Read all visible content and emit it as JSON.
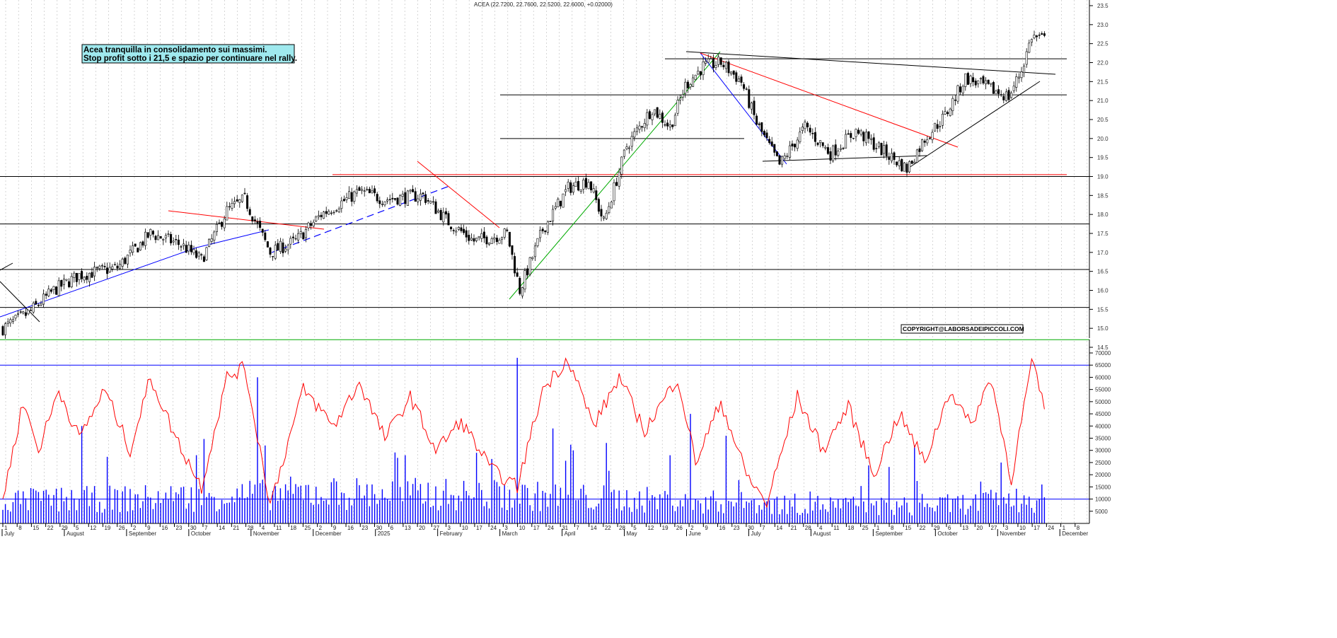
{
  "chart_data": {
    "type": "candlestick",
    "title": "ACEA (22.7200, 22.7600, 22.5200, 22.6000, +0.02000)",
    "annotation_lines": [
      "Acea tranquilla in consolidamento sui massimi.",
      "Stop profit sotto i 21,5 e spazio per continuare nel rally."
    ],
    "copyright": "COPYRIGHT@LABORSADEIPICCOLI.COM",
    "price_axis": {
      "min": 14.5,
      "max": 23.5,
      "step": 0.5,
      "labels": [
        "14.5",
        "15.0",
        "15.5",
        "16.0",
        "16.5",
        "17.0",
        "17.5",
        "18.0",
        "18.5",
        "19.0",
        "19.5",
        "20.0",
        "20.5",
        "21.0",
        "21.5",
        "22.0",
        "22.5",
        "23.0",
        "23.5"
      ]
    },
    "volume_axis": {
      "min": 0,
      "max": 70000,
      "step": 5000,
      "labels": [
        "5000",
        "10000",
        "15000",
        "20000",
        "25000",
        "30000",
        "35000",
        "40000",
        "45000",
        "50000",
        "55000",
        "60000",
        "65000",
        "70000"
      ]
    },
    "months": [
      "July",
      "August",
      "September",
      "October",
      "November",
      "December",
      "2025",
      "February",
      "March",
      "April",
      "May",
      "June",
      "July",
      "August",
      "September",
      "October",
      "November",
      "December"
    ],
    "day_ticks": [
      "1",
      "8",
      "15",
      "22",
      "29",
      "5",
      "12",
      "19",
      "26",
      "2",
      "9",
      "16",
      "23",
      "30",
      "7",
      "14",
      "21",
      "28",
      "4",
      "11",
      "18",
      "25",
      "2",
      "9",
      "16",
      "23",
      "30",
      "6",
      "13",
      "20",
      "27",
      "3",
      "10",
      "17",
      "24",
      "3",
      "10",
      "17",
      "24",
      "31",
      "7",
      "14",
      "22",
      "28",
      "5",
      "12",
      "19",
      "26",
      "2",
      "9",
      "16",
      "23",
      "30",
      "7",
      "14",
      "21",
      "28",
      "4",
      "11",
      "18",
      "25",
      "1",
      "8",
      "15",
      "22",
      "29",
      "6",
      "13",
      "20",
      "27",
      "3",
      "10",
      "17",
      "24",
      "1",
      "8"
    ],
    "horizontal_levels": [
      {
        "value": 19.0,
        "color": "#000000"
      },
      {
        "value": 17.75,
        "color": "#000000"
      },
      {
        "value": 16.55,
        "color": "#000000"
      },
      {
        "value": 15.55,
        "color": "#000000"
      },
      {
        "value": 14.7,
        "color": "#00aa00"
      },
      {
        "value": 21.15,
        "color": "#000000"
      },
      {
        "value": 22.1,
        "color": "#000000"
      },
      {
        "value": 20.0,
        "color": "#000000"
      },
      {
        "value": 19.05,
        "color": "#ff0000"
      }
    ],
    "volume_levels": [
      65000,
      10000
    ],
    "close_anchors": [
      {
        "day": 0,
        "price": 15.0
      },
      {
        "day": 10,
        "price": 15.4
      },
      {
        "day": 20,
        "price": 16.0
      },
      {
        "day": 30,
        "price": 16.4
      },
      {
        "day": 45,
        "price": 16.6
      },
      {
        "day": 58,
        "price": 17.5
      },
      {
        "day": 70,
        "price": 17.2
      },
      {
        "day": 78,
        "price": 16.8
      },
      {
        "day": 88,
        "price": 18.1
      },
      {
        "day": 95,
        "price": 18.4
      },
      {
        "day": 105,
        "price": 17.0
      },
      {
        "day": 115,
        "price": 17.3
      },
      {
        "day": 125,
        "price": 18.0
      },
      {
        "day": 140,
        "price": 18.6
      },
      {
        "day": 150,
        "price": 18.4
      },
      {
        "day": 165,
        "price": 18.5
      },
      {
        "day": 175,
        "price": 17.8
      },
      {
        "day": 185,
        "price": 17.3
      },
      {
        "day": 198,
        "price": 17.5
      },
      {
        "day": 203,
        "price": 16.0
      },
      {
        "day": 212,
        "price": 17.6
      },
      {
        "day": 222,
        "price": 18.7
      },
      {
        "day": 230,
        "price": 18.9
      },
      {
        "day": 236,
        "price": 17.8
      },
      {
        "day": 245,
        "price": 19.8
      },
      {
        "day": 255,
        "price": 20.8
      },
      {
        "day": 262,
        "price": 20.3
      },
      {
        "day": 268,
        "price": 21.4
      },
      {
        "day": 275,
        "price": 21.9
      },
      {
        "day": 282,
        "price": 22.0
      },
      {
        "day": 290,
        "price": 21.5
      },
      {
        "day": 296,
        "price": 20.4
      },
      {
        "day": 305,
        "price": 19.3
      },
      {
        "day": 315,
        "price": 20.3
      },
      {
        "day": 325,
        "price": 19.6
      },
      {
        "day": 335,
        "price": 20.2
      },
      {
        "day": 345,
        "price": 19.7
      },
      {
        "day": 355,
        "price": 19.2
      },
      {
        "day": 362,
        "price": 20.0
      },
      {
        "day": 370,
        "price": 20.6
      },
      {
        "day": 378,
        "price": 21.6
      },
      {
        "day": 388,
        "price": 21.3
      },
      {
        "day": 395,
        "price": 21.1
      },
      {
        "day": 400,
        "price": 21.8
      },
      {
        "day": 404,
        "price": 22.7
      },
      {
        "day": 409,
        "price": 22.6
      }
    ],
    "volume_base": [
      {
        "day": 0,
        "v": 8000
      },
      {
        "day": 60,
        "v": 9000
      },
      {
        "day": 120,
        "v": 11000
      },
      {
        "day": 200,
        "v": 10000
      },
      {
        "day": 300,
        "v": 7000
      },
      {
        "day": 360,
        "v": 6000
      },
      {
        "day": 409,
        "v": 9000
      }
    ],
    "volume_spikes": [
      {
        "day": 31,
        "v": 40000
      },
      {
        "day": 100,
        "v": 60000
      },
      {
        "day": 103,
        "v": 32000
      },
      {
        "day": 158,
        "v": 28000
      },
      {
        "day": 202,
        "v": 68000
      },
      {
        "day": 216,
        "v": 39000
      },
      {
        "day": 224,
        "v": 30000
      },
      {
        "day": 262,
        "v": 28000
      },
      {
        "day": 270,
        "v": 45000
      },
      {
        "day": 284,
        "v": 36000
      },
      {
        "day": 358,
        "v": 32000
      },
      {
        "day": 392,
        "v": 25000
      }
    ],
    "red_oscillator": [
      {
        "day": 0,
        "v": 10000
      },
      {
        "day": 8,
        "v": 50000
      },
      {
        "day": 14,
        "v": 30000
      },
      {
        "day": 22,
        "v": 55000
      },
      {
        "day": 30,
        "v": 35000
      },
      {
        "day": 40,
        "v": 55000
      },
      {
        "day": 50,
        "v": 30000
      },
      {
        "day": 58,
        "v": 60000
      },
      {
        "day": 68,
        "v": 35000
      },
      {
        "day": 78,
        "v": 15000
      },
      {
        "day": 88,
        "v": 60000
      },
      {
        "day": 95,
        "v": 64000
      },
      {
        "day": 105,
        "v": 8000
      },
      {
        "day": 118,
        "v": 55000
      },
      {
        "day": 130,
        "v": 40000
      },
      {
        "day": 140,
        "v": 58000
      },
      {
        "day": 150,
        "v": 35000
      },
      {
        "day": 160,
        "v": 52000
      },
      {
        "day": 170,
        "v": 30000
      },
      {
        "day": 180,
        "v": 42000
      },
      {
        "day": 192,
        "v": 22000
      },
      {
        "day": 202,
        "v": 15000
      },
      {
        "day": 212,
        "v": 55000
      },
      {
        "day": 222,
        "v": 68000
      },
      {
        "day": 232,
        "v": 40000
      },
      {
        "day": 242,
        "v": 60000
      },
      {
        "day": 252,
        "v": 38000
      },
      {
        "day": 265,
        "v": 60000
      },
      {
        "day": 272,
        "v": 25000
      },
      {
        "day": 282,
        "v": 50000
      },
      {
        "day": 292,
        "v": 20000
      },
      {
        "day": 300,
        "v": 8000
      },
      {
        "day": 312,
        "v": 52000
      },
      {
        "day": 322,
        "v": 30000
      },
      {
        "day": 332,
        "v": 48000
      },
      {
        "day": 342,
        "v": 20000
      },
      {
        "day": 352,
        "v": 45000
      },
      {
        "day": 362,
        "v": 25000
      },
      {
        "day": 372,
        "v": 55000
      },
      {
        "day": 380,
        "v": 40000
      },
      {
        "day": 388,
        "v": 60000
      },
      {
        "day": 396,
        "v": 18000
      },
      {
        "day": 404,
        "v": 66000
      },
      {
        "day": 409,
        "v": 48000
      }
    ]
  }
}
